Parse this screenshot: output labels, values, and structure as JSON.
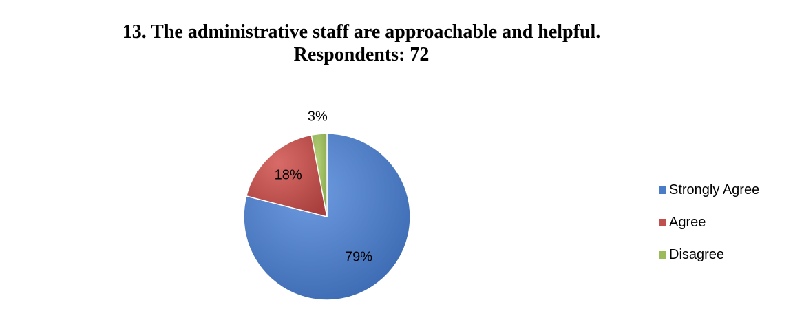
{
  "chart_data": {
    "type": "pie",
    "title": "13. The administrative staff are approachable and helpful.",
    "subtitle": "Respondents: 72",
    "categories": [
      "Strongly Agree",
      "Agree",
      "Disagree"
    ],
    "values": [
      79,
      18,
      3
    ],
    "value_labels": [
      "79%",
      "18%",
      "3%"
    ],
    "colors": [
      "#4A7CC7",
      "#C0504D",
      "#9BBB59"
    ],
    "legend_position": "right",
    "start_angle_deg": 0,
    "direction": "clockwise"
  }
}
